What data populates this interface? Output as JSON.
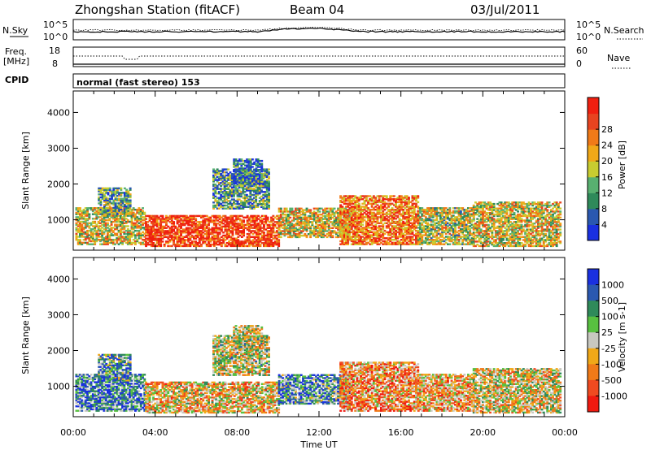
{
  "header": {
    "station": "Zhongshan Station (fitACF)",
    "beam": "Beam 04",
    "date": "03/Jul/2011"
  },
  "panels": {
    "nsky": {
      "left_label": "N.Sky",
      "left_ticks": [
        "10^5",
        "10^0"
      ],
      "right_label": "N.Search",
      "right_ticks": [
        "10^5",
        "10^0"
      ]
    },
    "freq": {
      "left_label_1": "Freq.",
      "left_label_2": "[MHz]",
      "left_ticks": [
        "18",
        "8"
      ],
      "right_label": "Nave",
      "right_ticks": [
        "60",
        "0"
      ]
    },
    "cpid": {
      "label": "CPID",
      "text": "normal (fast stereo) 153"
    }
  },
  "colors": {
    "power": [
      "#1a30e0",
      "#2a58b0",
      "#2f8a5a",
      "#58b070",
      "#c8cc30",
      "#f0a818",
      "#f07a18",
      "#e84420",
      "#f02010"
    ],
    "velocity": [
      "#1a30e0",
      "#2a58b0",
      "#2f8a5a",
      "#58c040",
      "#c8c8c0",
      "#f0a818",
      "#f07a18",
      "#f04a20",
      "#f01a10"
    ]
  },
  "chart_data": [
    {
      "type": "heatmap",
      "name": "power",
      "ylabel": "Slant Range [km]",
      "yticks": [
        1000,
        2000,
        3000,
        4000
      ],
      "ylim": [
        150,
        4600
      ],
      "xlim": [
        0,
        24
      ],
      "xticks": [
        "00:00",
        "04:00",
        "08:00",
        "12:00",
        "16:00",
        "20:00",
        "00:00"
      ],
      "xlabel": "Time UT",
      "colorbar": {
        "label": "Power [dB]",
        "ticks": [
          "4",
          "8",
          "12",
          "16",
          "20",
          "24",
          "28"
        ]
      },
      "regions": [
        {
          "t0": 0.1,
          "t1": 3.5,
          "r0": 300,
          "r1": 1350,
          "peak": 0.55
        },
        {
          "t0": 1.2,
          "t1": 2.8,
          "r0": 1150,
          "r1": 1900,
          "peak": 0.35
        },
        {
          "t0": 3.5,
          "t1": 10.0,
          "r0": 250,
          "r1": 1100,
          "peak": 0.9
        },
        {
          "t0": 6.8,
          "t1": 9.5,
          "r0": 1300,
          "r1": 2400,
          "peak": 0.3
        },
        {
          "t0": 7.8,
          "t1": 9.2,
          "r0": 2000,
          "r1": 2700,
          "peak": 0.2
        },
        {
          "t0": 10.0,
          "t1": 13.5,
          "r0": 500,
          "r1": 1300,
          "peak": 0.55
        },
        {
          "t0": 13.0,
          "t1": 16.8,
          "r0": 300,
          "r1": 1650,
          "peak": 0.75
        },
        {
          "t0": 16.8,
          "t1": 19.5,
          "r0": 300,
          "r1": 1350,
          "peak": 0.5
        },
        {
          "t0": 19.5,
          "t1": 23.8,
          "r0": 250,
          "r1": 1500,
          "peak": 0.55
        }
      ]
    },
    {
      "type": "heatmap",
      "name": "velocity",
      "ylabel": "Slant Range [km]",
      "yticks": [
        1000,
        2000,
        3000,
        4000
      ],
      "ylim": [
        150,
        4600
      ],
      "xlim": [
        0,
        24
      ],
      "xticks": [
        "00:00",
        "04:00",
        "08:00",
        "12:00",
        "16:00",
        "20:00",
        "00:00"
      ],
      "xlabel": "Time UT",
      "colorbar": {
        "label": "Velocity [m s-1]",
        "ticks": [
          "1000",
          "500",
          "100",
          "25",
          "-25",
          "-100",
          "-500",
          "-1000"
        ]
      },
      "regions": [
        {
          "t0": 0.1,
          "t1": 3.5,
          "r0": 300,
          "r1": 1350,
          "peak": 0.25
        },
        {
          "t0": 1.2,
          "t1": 2.8,
          "r0": 1150,
          "r1": 1900,
          "peak": 0.3
        },
        {
          "t0": 3.5,
          "t1": 10.0,
          "r0": 250,
          "r1": 1100,
          "peak": 0.6
        },
        {
          "t0": 6.8,
          "t1": 9.5,
          "r0": 1300,
          "r1": 2400,
          "peak": 0.5
        },
        {
          "t0": 7.8,
          "t1": 9.2,
          "r0": 2000,
          "r1": 2700,
          "peak": 0.5
        },
        {
          "t0": 10.0,
          "t1": 13.5,
          "r0": 500,
          "r1": 1300,
          "peak": 0.3
        },
        {
          "t0": 13.0,
          "t1": 16.8,
          "r0": 300,
          "r1": 1650,
          "peak": 0.7
        },
        {
          "t0": 16.8,
          "t1": 19.5,
          "r0": 300,
          "r1": 1350,
          "peak": 0.65
        },
        {
          "t0": 19.5,
          "t1": 23.8,
          "r0": 250,
          "r1": 1500,
          "peak": 0.55
        }
      ]
    }
  ]
}
